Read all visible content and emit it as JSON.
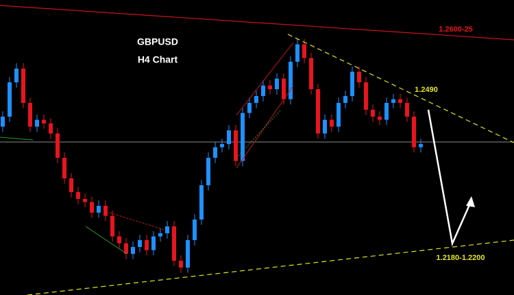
{
  "chart_data": {
    "type": "candlestick",
    "title": "GBPUSD",
    "subtitle": "H4 Chart",
    "annotations": [
      "1.2600-25",
      "1.2490",
      "1.2180-1.2200"
    ],
    "open": [
      1.242,
      1.2439,
      1.2504,
      1.253,
      1.2465,
      1.242,
      1.2433,
      1.2426,
      1.2407,
      1.2361,
      1.2322,
      1.2296,
      1.2283,
      1.2277,
      1.2257,
      1.227,
      1.2251,
      1.2212,
      1.2199,
      1.2179,
      1.2192,
      1.2205,
      1.2186,
      1.2212,
      1.2218,
      1.2231,
      1.2166,
      1.2153,
      1.2205,
      1.2244,
      1.2309,
      1.2361,
      1.2381,
      1.2387,
      1.2413,
      1.2355,
      1.2446,
      1.2465,
      1.2478,
      1.2498,
      1.2491,
      1.2511,
      1.2472,
      1.2543,
      1.2576,
      1.255,
      1.2491,
      1.2407,
      1.2433,
      1.242,
      1.2465,
      1.2478,
      1.2524,
      1.2504,
      1.2452,
      1.2439,
      1.2433,
      1.2465,
      1.2472,
      1.2465,
      1.2439,
      1.2381
    ],
    "high": [
      1.2449,
      1.2514,
      1.254,
      1.254,
      1.2475,
      1.2443,
      1.2443,
      1.2436,
      1.2417,
      1.2371,
      1.2332,
      1.2306,
      1.2293,
      1.2287,
      1.228,
      1.228,
      1.2261,
      1.2222,
      1.2209,
      1.2202,
      1.2215,
      1.2215,
      1.2222,
      1.2228,
      1.2241,
      1.2241,
      1.2176,
      1.2215,
      1.2254,
      1.2319,
      1.2371,
      1.2391,
      1.2397,
      1.2423,
      1.2423,
      1.2456,
      1.2475,
      1.2488,
      1.2508,
      1.2508,
      1.2521,
      1.2521,
      1.2553,
      1.2586,
      1.2586,
      1.256,
      1.2501,
      1.2443,
      1.2443,
      1.2475,
      1.2488,
      1.2534,
      1.2534,
      1.2514,
      1.2462,
      1.2449,
      1.2475,
      1.2482,
      1.2482,
      1.2475,
      1.2449,
      1.2397
    ],
    "low": [
      1.241,
      1.2429,
      1.2494,
      1.2455,
      1.241,
      1.241,
      1.2416,
      1.2397,
      1.2351,
      1.2312,
      1.2286,
      1.2273,
      1.2267,
      1.2247,
      1.2247,
      1.2241,
      1.2202,
      1.2189,
      1.2169,
      1.2169,
      1.2182,
      1.2176,
      1.2176,
      1.2202,
      1.2208,
      1.2156,
      1.2143,
      1.2143,
      1.2195,
      1.2234,
      1.2299,
      1.2351,
      1.2371,
      1.2377,
      1.2345,
      1.2345,
      1.2436,
      1.2455,
      1.2468,
      1.2481,
      1.2481,
      1.2462,
      1.2462,
      1.2533,
      1.254,
      1.2481,
      1.2397,
      1.2397,
      1.241,
      1.241,
      1.2455,
      1.2468,
      1.2494,
      1.2442,
      1.2429,
      1.2423,
      1.2423,
      1.2455,
      1.2455,
      1.2429,
      1.2371,
      1.2371
    ],
    "close": [
      1.2439,
      1.2504,
      1.253,
      1.2465,
      1.242,
      1.2433,
      1.2426,
      1.2407,
      1.2361,
      1.2322,
      1.2296,
      1.2283,
      1.2277,
      1.2257,
      1.227,
      1.2251,
      1.2212,
      1.2199,
      1.2179,
      1.2192,
      1.2205,
      1.2186,
      1.2212,
      1.2218,
      1.2231,
      1.2166,
      1.2153,
      1.2205,
      1.2244,
      1.2309,
      1.2361,
      1.2381,
      1.2387,
      1.2413,
      1.2355,
      1.2446,
      1.2465,
      1.2478,
      1.2498,
      1.2491,
      1.2511,
      1.2472,
      1.2543,
      1.2576,
      1.255,
      1.2491,
      1.2407,
      1.2433,
      1.242,
      1.2465,
      1.2478,
      1.2524,
      1.2504,
      1.2452,
      1.2439,
      1.2433,
      1.2465,
      1.2472,
      1.2465,
      1.2439,
      1.2381,
      1.2387
    ],
    "ylim": [
      1.2101,
      1.266
    ],
    "up_color": "#1e90ff",
    "down_color": "#e8141e",
    "background": "#000000"
  }
}
